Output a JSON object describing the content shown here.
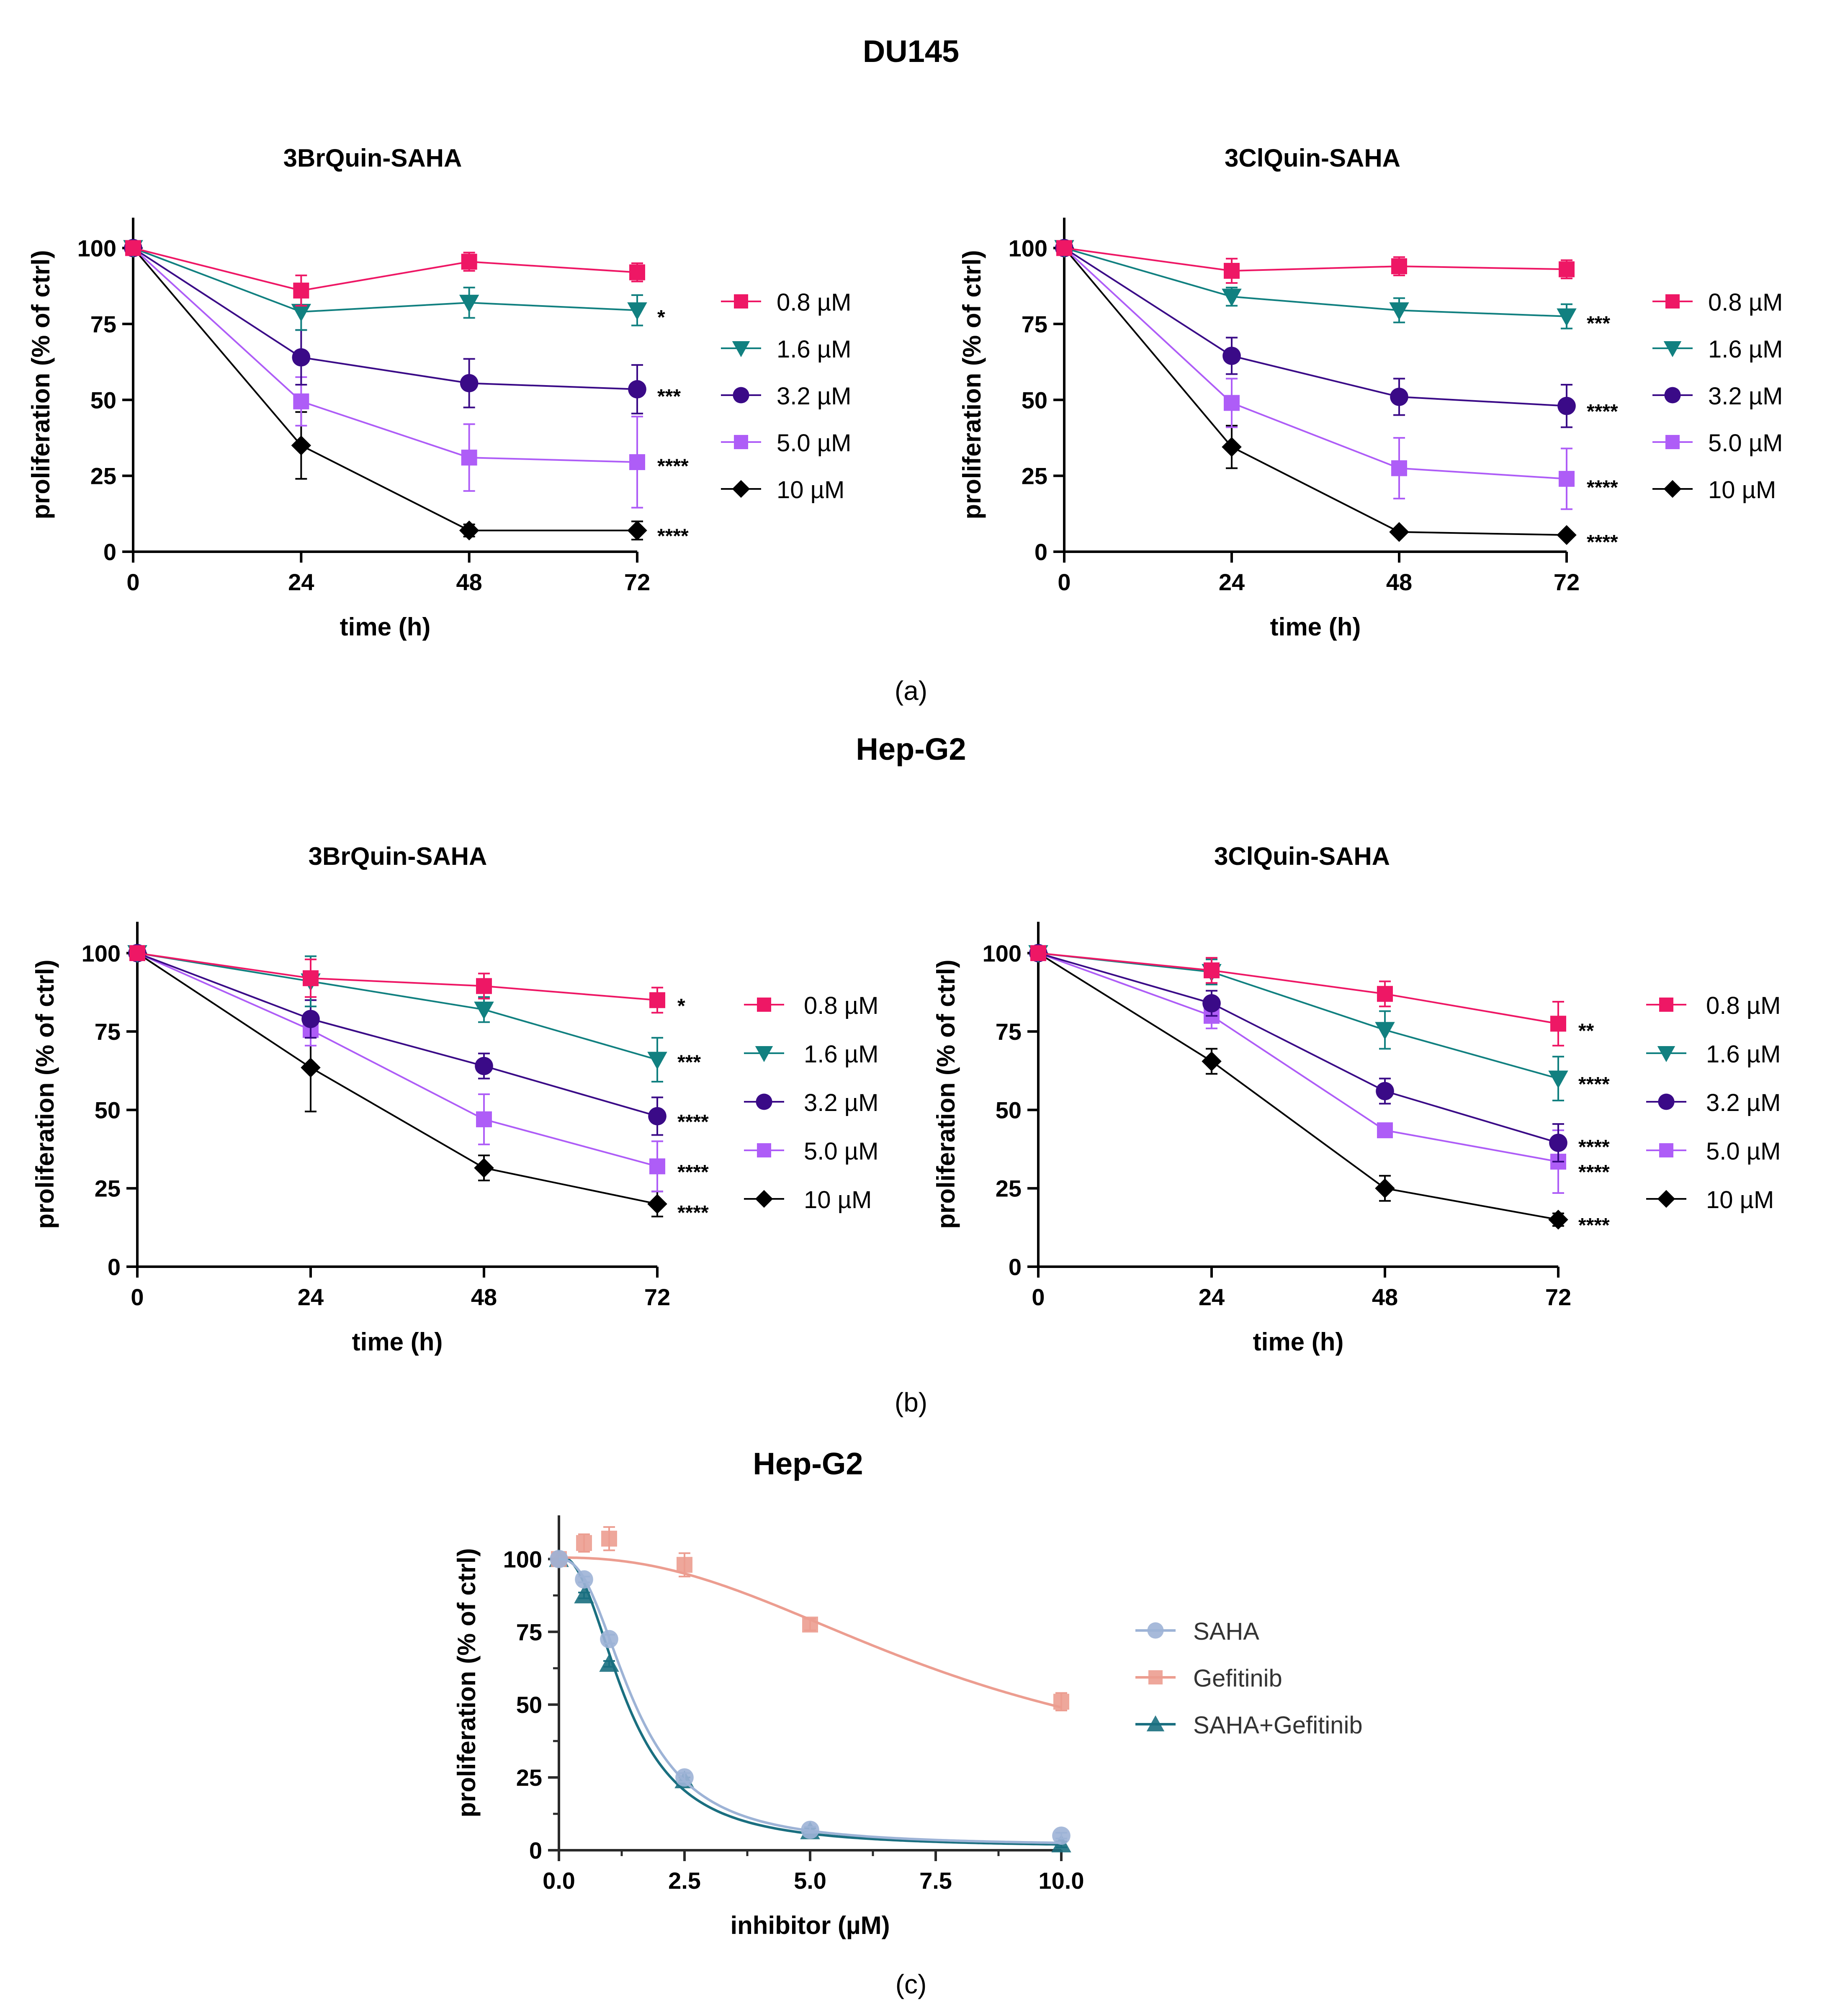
{
  "figure": {
    "sections": [
      {
        "title": "DU145",
        "caption": "(a)"
      },
      {
        "title": "Hep-G2",
        "caption": "(b)"
      },
      {
        "title": "Hep-G2",
        "caption": "(c)"
      }
    ]
  },
  "chart_data": [
    {
      "id": "a1",
      "type": "line",
      "title": "3BrQuin-SAHA",
      "xlabel": "time (h)",
      "ylabel": "proliferation (% of ctrl)",
      "xlim": [
        0,
        72
      ],
      "ylim": [
        0,
        110
      ],
      "xticks": [
        "0",
        "24",
        "48",
        "72"
      ],
      "yticks": [
        "0",
        "25",
        "50",
        "75",
        "100"
      ],
      "x": [
        0,
        24,
        48,
        72
      ],
      "legend_position": "right",
      "series": [
        {
          "name": "0.8 µM",
          "color": "#ee1765",
          "marker": "square",
          "values": [
            100,
            86,
            95.5,
            92
          ],
          "err": [
            0,
            5,
            3,
            3
          ],
          "sig": "",
          "sig_y": 92
        },
        {
          "name": "1.6 µM",
          "color": "#118080",
          "marker": "triangle-down",
          "values": [
            100,
            79,
            82,
            79.5
          ],
          "err": [
            0,
            6,
            5,
            5
          ],
          "sig": "*",
          "sig_y": 78
        },
        {
          "name": "3.2 µM",
          "color": "#3a0a87",
          "marker": "circle",
          "values": [
            100,
            64,
            55.5,
            53.5
          ],
          "err": [
            0,
            9,
            8,
            8
          ],
          "sig": "***",
          "sig_y": 52
        },
        {
          "name": "5.0 µM",
          "color": "#ae5df7",
          "marker": "square",
          "values": [
            100,
            49.5,
            31,
            29.5
          ],
          "err": [
            0,
            8,
            11,
            15
          ],
          "sig": "****",
          "sig_y": 29
        },
        {
          "name": "10 µM",
          "color": "#000000",
          "marker": "diamond",
          "values": [
            100,
            35,
            7,
            7
          ],
          "err": [
            0,
            11,
            2,
            3
          ],
          "sig": "****",
          "sig_y": 6
        }
      ]
    },
    {
      "id": "a2",
      "type": "line",
      "title": "3ClQuin-SAHA",
      "xlabel": "time (h)",
      "ylabel": "proliferation (% of ctrl)",
      "xlim": [
        0,
        72
      ],
      "ylim": [
        0,
        110
      ],
      "xticks": [
        "0",
        "24",
        "48",
        "72"
      ],
      "yticks": [
        "0",
        "25",
        "50",
        "75",
        "100"
      ],
      "x": [
        0,
        24,
        48,
        72
      ],
      "legend_position": "right",
      "series": [
        {
          "name": "0.8 µM",
          "color": "#ee1765",
          "marker": "square",
          "values": [
            100,
            92.5,
            94,
            93
          ],
          "err": [
            0,
            4,
            3,
            3
          ],
          "sig": "",
          "sig_y": 93
        },
        {
          "name": "1.6 µM",
          "color": "#118080",
          "marker": "triangle-down",
          "values": [
            100,
            84,
            79.5,
            77.5
          ],
          "err": [
            0,
            3,
            4,
            4
          ],
          "sig": "***",
          "sig_y": 76
        },
        {
          "name": "3.2 µM",
          "color": "#3a0a87",
          "marker": "circle",
          "values": [
            100,
            64.5,
            51,
            48
          ],
          "err": [
            0,
            6,
            6,
            7
          ],
          "sig": "****",
          "sig_y": 47
        },
        {
          "name": "5.0 µM",
          "color": "#ae5df7",
          "marker": "square",
          "values": [
            100,
            49,
            27.5,
            24
          ],
          "err": [
            0,
            8,
            10,
            10
          ],
          "sig": "****",
          "sig_y": 22
        },
        {
          "name": "10 µM",
          "color": "#000000",
          "marker": "diamond",
          "values": [
            100,
            34.5,
            6.5,
            5.5
          ],
          "err": [
            0,
            7,
            1,
            1
          ],
          "sig": "****",
          "sig_y": 4
        }
      ]
    },
    {
      "id": "b1",
      "type": "line",
      "title": "3BrQuin-SAHA",
      "xlabel": "time (h)",
      "ylabel": "proliferation (% of ctrl)",
      "xlim": [
        0,
        72
      ],
      "ylim": [
        0,
        110
      ],
      "xticks": [
        "0",
        "24",
        "48",
        "72"
      ],
      "yticks": [
        "0",
        "25",
        "50",
        "75",
        "100"
      ],
      "x": [
        0,
        24,
        48,
        72
      ],
      "legend_position": "right",
      "series": [
        {
          "name": "0.8 µM",
          "color": "#ee1765",
          "marker": "square",
          "values": [
            100,
            92,
            89.5,
            85
          ],
          "err": [
            0,
            6,
            4,
            4
          ],
          "sig": "*",
          "sig_y": 84
        },
        {
          "name": "1.6 µM",
          "color": "#118080",
          "marker": "triangle-down",
          "values": [
            100,
            91,
            82,
            66
          ],
          "err": [
            0,
            8,
            4,
            7
          ],
          "sig": "***",
          "sig_y": 66
        },
        {
          "name": "3.2 µM",
          "color": "#3a0a87",
          "marker": "circle",
          "values": [
            100,
            79,
            64,
            48
          ],
          "err": [
            0,
            6,
            4,
            6
          ],
          "sig": "****",
          "sig_y": 47
        },
        {
          "name": "5.0 µM",
          "color": "#ae5df7",
          "marker": "square",
          "values": [
            100,
            75.5,
            47,
            32
          ],
          "err": [
            0,
            5,
            8,
            8
          ],
          "sig": "****",
          "sig_y": 31
        },
        {
          "name": "10 µM",
          "color": "#000000",
          "marker": "diamond",
          "values": [
            100,
            63.5,
            31.5,
            20
          ],
          "err": [
            0,
            14,
            4,
            4
          ],
          "sig": "****",
          "sig_y": 18
        }
      ]
    },
    {
      "id": "b2",
      "type": "line",
      "title": "3ClQuin-SAHA",
      "xlabel": "time (h)",
      "ylabel": "proliferation (% of ctrl)",
      "xlim": [
        0,
        72
      ],
      "ylim": [
        0,
        110
      ],
      "xticks": [
        "0",
        "24",
        "48",
        "72"
      ],
      "yticks": [
        "0",
        "25",
        "50",
        "75",
        "100"
      ],
      "x": [
        0,
        24,
        48,
        72
      ],
      "legend_position": "right",
      "series": [
        {
          "name": "0.8 µM",
          "color": "#ee1765",
          "marker": "square",
          "values": [
            100,
            94.5,
            87,
            77.5
          ],
          "err": [
            0,
            4,
            4,
            7
          ],
          "sig": "**",
          "sig_y": 76
        },
        {
          "name": "1.6 µM",
          "color": "#118080",
          "marker": "triangle-down",
          "values": [
            100,
            94,
            75.5,
            60
          ],
          "err": [
            0,
            4,
            6,
            7
          ],
          "sig": "****",
          "sig_y": 59
        },
        {
          "name": "3.2 µM",
          "color": "#3a0a87",
          "marker": "circle",
          "values": [
            100,
            84,
            56,
            39.5
          ],
          "err": [
            0,
            4,
            4,
            6
          ],
          "sig": "****",
          "sig_y": 39
        },
        {
          "name": "5.0 µM",
          "color": "#ae5df7",
          "marker": "square",
          "values": [
            100,
            80,
            43.5,
            33.5
          ],
          "err": [
            0,
            4,
            2,
            10
          ],
          "sig": "****",
          "sig_y": 31
        },
        {
          "name": "10 µM",
          "color": "#000000",
          "marker": "diamond",
          "values": [
            100,
            65.5,
            25,
            15
          ],
          "err": [
            0,
            4,
            4,
            2
          ],
          "sig": "****",
          "sig_y": 14
        }
      ]
    },
    {
      "id": "c",
      "type": "scatter",
      "title": "",
      "xlabel": "inhibitor (µM)",
      "ylabel": "proliferation (% of ctrl)",
      "xlim": [
        0,
        10
      ],
      "ylim": [
        0,
        115
      ],
      "xticks": [
        "0.0",
        "2.5",
        "5.0",
        "7.5",
        "10.0"
      ],
      "yticks": [
        "0",
        "25",
        "50",
        "75",
        "100"
      ],
      "legend_position": "right",
      "series": [
        {
          "name": "SAHA",
          "color": "#9db3d6",
          "marker": "circle",
          "x": [
            0,
            0.5,
            1,
            2.5,
            5,
            10
          ],
          "values": [
            100,
            93,
            72.5,
            25,
            7,
            5
          ],
          "err": [
            0,
            1,
            1.5,
            1.5,
            1,
            1
          ],
          "fit": {
            "top": 100,
            "bottom": 1.5,
            "ic50": 1.5,
            "hill": 2.4
          }
        },
        {
          "name": "Gefitinib",
          "color": "#ec9d90",
          "marker": "square",
          "x": [
            0,
            0.5,
            1,
            2.5,
            5,
            10
          ],
          "values": [
            100,
            105.5,
            107,
            98,
            77.5,
            51
          ],
          "err": [
            0,
            3,
            4,
            4,
            2,
            3
          ],
          "fit": {
            "top": 100.5,
            "bottom": 20,
            "ic50": 7.8,
            "hill": 2.3
          }
        },
        {
          "name": "SAHA+Gefitinib",
          "color": "#1a6f80",
          "marker": "triangle-up",
          "x": [
            0,
            0.5,
            1,
            2.5,
            5,
            10
          ],
          "values": [
            100,
            87.5,
            64,
            24,
            6.5,
            2
          ],
          "err": [
            0,
            1,
            1,
            1,
            1,
            1
          ],
          "fit": {
            "top": 101,
            "bottom": 1,
            "ic50": 1.35,
            "hill": 2.3
          }
        }
      ]
    }
  ]
}
